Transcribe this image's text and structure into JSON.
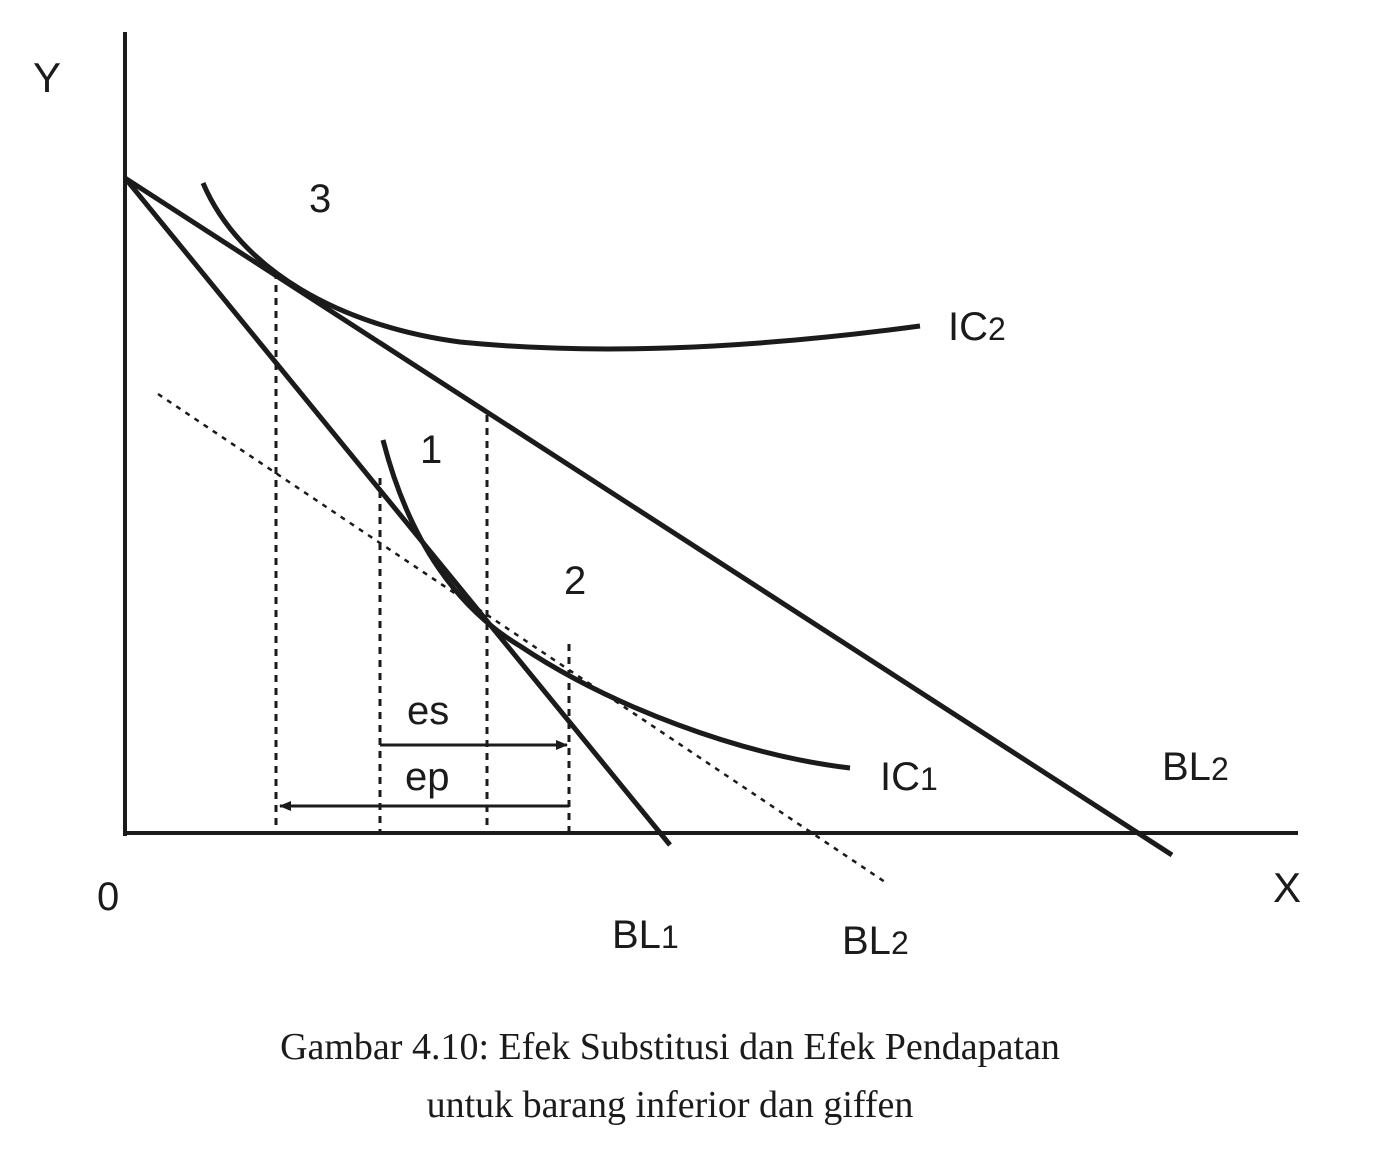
{
  "axes": {
    "y_label": "Y",
    "x_label": "X",
    "origin_label": "0"
  },
  "points": {
    "p3": "3",
    "p1": "1",
    "p2": "2"
  },
  "curves": {
    "ic2": {
      "main": "IC",
      "sub": "2"
    },
    "ic1": {
      "main": "IC",
      "sub": "1"
    }
  },
  "budget_lines": {
    "bl2_right": {
      "main": "BL",
      "sub": "2"
    },
    "bl1_bottom": {
      "main": "BL",
      "sub": "1"
    },
    "bl2_bottom": {
      "main": "BL",
      "sub": "2"
    }
  },
  "effects": {
    "es": "es",
    "ep": "ep"
  },
  "caption": {
    "line1": "Gambar 4.10: Efek Substitusi dan Efek Pendapatan",
    "line2": "untuk barang inferior dan giffen"
  }
}
